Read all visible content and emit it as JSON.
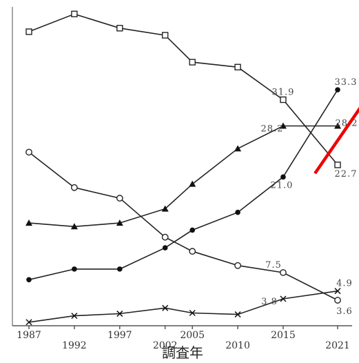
{
  "chart_data": {
    "type": "line",
    "title": "",
    "xlabel": "調査年",
    "ylabel": "",
    "x": [
      1987,
      1992,
      1997,
      2002,
      2005,
      2010,
      2015,
      2021
    ],
    "tick_labels": [
      "1987",
      "1992",
      "1997",
      "2002",
      "2005",
      "2010",
      "2015",
      "2021"
    ],
    "ylim": [
      0,
      45
    ],
    "grid": false,
    "legend": "none",
    "series": [
      {
        "marker": "square",
        "values": [
          41.5,
          44.0,
          42.0,
          41.0,
          37.2,
          36.5,
          31.9,
          22.7
        ]
      },
      {
        "marker": "filled-circle",
        "values": [
          6.5,
          8.0,
          8.0,
          11.0,
          13.5,
          16.0,
          21.0,
          33.3
        ]
      },
      {
        "marker": "triangle",
        "values": [
          14.5,
          14.0,
          14.5,
          16.5,
          20.0,
          25.0,
          28.2,
          28.2
        ]
      },
      {
        "marker": "open-circle",
        "values": [
          24.5,
          19.5,
          18.0,
          12.5,
          10.5,
          8.5,
          7.5,
          3.6
        ]
      },
      {
        "marker": "cross",
        "values": [
          0.5,
          1.4,
          1.7,
          2.5,
          1.8,
          1.6,
          3.8,
          4.9
        ]
      }
    ],
    "data_labels": [
      {
        "series": 0,
        "index": 6,
        "text": "31.9"
      },
      {
        "series": 0,
        "index": 7,
        "text": "22.7"
      },
      {
        "series": 1,
        "index": 6,
        "text": "21.0"
      },
      {
        "series": 1,
        "index": 7,
        "text": "33.3"
      },
      {
        "series": 2,
        "index": 6,
        "text": "28.2"
      },
      {
        "series": 2,
        "index": 7,
        "text": "28.2"
      },
      {
        "series": 3,
        "index": 6,
        "text": "7.5"
      },
      {
        "series": 3,
        "index": 7,
        "text": "3.6"
      },
      {
        "series": 4,
        "index": 6,
        "text": "3.8"
      },
      {
        "series": 4,
        "index": 7,
        "text": "4.9"
      }
    ],
    "annotations": [
      {
        "type": "arrow",
        "color": "#ee0000",
        "from_x": 2018.5,
        "from_y": 21.5,
        "to_x": 2025.5,
        "to_y": 34.5
      }
    ]
  }
}
